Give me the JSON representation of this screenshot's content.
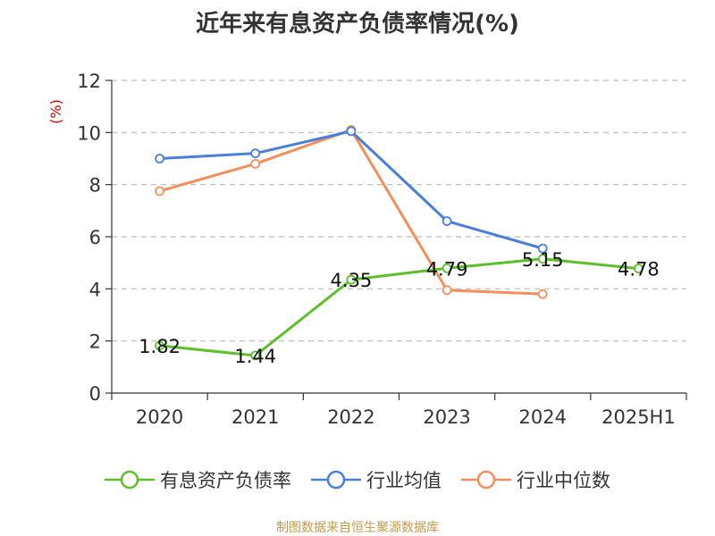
{
  "colors": {
    "background": "#ffffff",
    "grid": "#bbbbbb",
    "axis": "#333333",
    "ylabel": "#cc0000",
    "source": "#c39a4a"
  },
  "chart_data": {
    "type": "line",
    "title": "近年来有息资产负债率情况(%)",
    "ylabel": "(%)",
    "xlabel": "",
    "categories": [
      "2020",
      "2021",
      "2022",
      "2023",
      "2024",
      "2025H1"
    ],
    "ylim": [
      0,
      12
    ],
    "yticks": [
      0,
      2,
      4,
      6,
      8,
      10,
      12
    ],
    "grid": true,
    "legend_position": "bottom",
    "series": [
      {
        "name": "有息资产负债率",
        "color": "#5cc02b",
        "values": [
          1.82,
          1.44,
          4.35,
          4.79,
          5.15,
          4.78
        ],
        "labels": [
          "1.82",
          "1.44",
          "4.35",
          "4.79",
          "5.15",
          "4.78"
        ]
      },
      {
        "name": "行业均值",
        "color": "#4a7fdb",
        "values": [
          9.0,
          9.2,
          10.05,
          6.6,
          5.55,
          null
        ],
        "labels": null
      },
      {
        "name": "行业中位数",
        "color": "#f58e5b",
        "values": [
          7.75,
          8.8,
          10.1,
          3.95,
          3.8,
          null
        ],
        "labels": null
      }
    ]
  },
  "source": "制图数据来自恒生聚源数据库"
}
